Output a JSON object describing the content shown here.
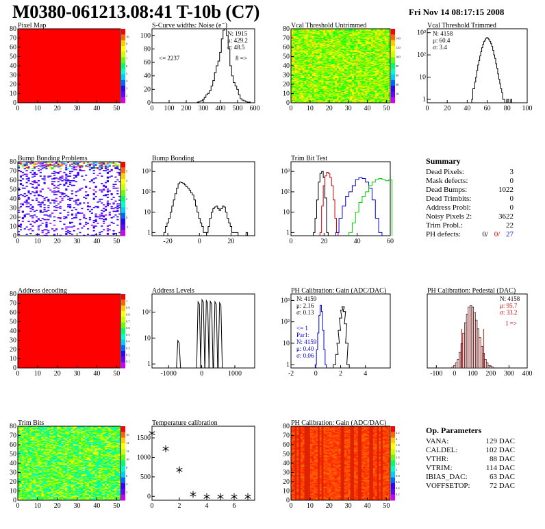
{
  "header": {
    "title": "M0380-061213.08:41 T-10b (C7)",
    "date": "Fri Nov 14 08:17:15 2008"
  },
  "colors": {
    "red_hist": "#cc0000",
    "green_hist": "#00cc00",
    "blue_hist": "#0000cc",
    "frame": "#000000"
  },
  "chart_data": [
    {
      "id": "pixel-map",
      "type": "heatmap",
      "title": "Pixel Map",
      "xlim": [
        0,
        52
      ],
      "ylim": [
        0,
        80
      ],
      "xticks": [
        "0",
        "10",
        "20",
        "30",
        "40",
        "50"
      ],
      "yticks": [
        "0",
        "10",
        "20",
        "30",
        "40",
        "50",
        "60",
        "70",
        "80"
      ],
      "zticks": [
        "2",
        "3",
        "4",
        "5",
        "6",
        "7",
        "8",
        "9",
        "10"
      ],
      "fill": "uniform red (all pixels at maximum)"
    },
    {
      "id": "scurve-noise",
      "type": "line",
      "title": "S-Curve widths: Noise (e⁻)",
      "xlim": [
        0,
        600
      ],
      "ylim": [
        0,
        110
      ],
      "xticks": [
        "0",
        "100",
        "200",
        "300",
        "400",
        "500",
        "600"
      ],
      "yticks": [
        "0",
        "20",
        "40",
        "60",
        "80",
        "100"
      ],
      "stats": [
        "N: 1915",
        "μ: 429.2",
        "σ: 48.5"
      ],
      "annotations": [
        "<= 2237",
        "8 =>"
      ],
      "x": [
        270,
        280,
        290,
        300,
        310,
        320,
        330,
        340,
        350,
        360,
        370,
        380,
        390,
        400,
        410,
        420,
        430,
        440,
        450,
        460,
        470,
        480,
        490,
        500,
        510,
        520,
        530,
        540,
        550,
        560,
        570
      ],
      "values": [
        1,
        2,
        3,
        5,
        8,
        12,
        14,
        18,
        25,
        33,
        45,
        55,
        62,
        75,
        95,
        108,
        112,
        100,
        80,
        55,
        40,
        30,
        25,
        20,
        12,
        6,
        4,
        3,
        2,
        1,
        1
      ]
    },
    {
      "id": "vcal-untrimmed",
      "type": "heatmap",
      "title": "Vcal Threshold Untrimmed",
      "xlim": [
        0,
        52
      ],
      "ylim": [
        0,
        80
      ],
      "xticks": [
        "0",
        "10",
        "20",
        "30",
        "40",
        "50"
      ],
      "yticks": [
        "0",
        "10",
        "20",
        "30",
        "40",
        "50",
        "60",
        "70",
        "80"
      ],
      "zticks": [
        "20",
        "40",
        "60",
        "80",
        "100",
        "120",
        "140"
      ],
      "fill": "mostly green/yellow noise"
    },
    {
      "id": "vcal-trimmed",
      "type": "line",
      "title": "Vcal Threshold Trimmed",
      "xlim": [
        0,
        100
      ],
      "ylim": [
        0.7,
        1500
      ],
      "yscale": "log",
      "xticks": [
        "0",
        "20",
        "40",
        "60",
        "80",
        "100"
      ],
      "yticks": [
        "1",
        "10",
        "10²",
        "10³"
      ],
      "stats": [
        "N: 4158",
        "μ: 60.4",
        "σ: 3.4"
      ],
      "x": [
        45,
        46,
        47,
        48,
        49,
        50,
        51,
        52,
        53,
        54,
        55,
        56,
        57,
        58,
        59,
        60,
        61,
        62,
        63,
        64,
        65,
        66,
        67,
        68,
        69,
        70,
        71,
        72,
        73,
        74,
        75,
        76,
        77,
        78,
        79,
        80,
        81,
        82,
        83,
        84
      ],
      "values": [
        1,
        3,
        3,
        6,
        10,
        20,
        35,
        55,
        90,
        140,
        210,
        300,
        400,
        470,
        560,
        600,
        560,
        480,
        400,
        320,
        240,
        160,
        100,
        70,
        40,
        25,
        14,
        8,
        5,
        3,
        2,
        1,
        1,
        0,
        0,
        1,
        1,
        0,
        0,
        1
      ]
    },
    {
      "id": "bump-problems",
      "type": "heatmap",
      "title": "Bump Bonding Problems",
      "xlim": [
        0,
        52
      ],
      "ylim": [
        0,
        80
      ],
      "xticks": [
        "0",
        "10",
        "20",
        "30",
        "40",
        "50"
      ],
      "yticks": [
        "0",
        "10",
        "20",
        "30",
        "40",
        "50",
        "60",
        "70",
        "80"
      ],
      "zticks": [
        "-1",
        "0",
        "1",
        "2",
        "3",
        "4",
        "5"
      ],
      "fill": "sparse blue points on white"
    },
    {
      "id": "bump-bonding",
      "type": "line",
      "title": "Bump Bonding",
      "xlim": [
        -30,
        35
      ],
      "ylim": [
        0.7,
        3000
      ],
      "yscale": "log",
      "xticks": [
        "-20",
        "0",
        "20"
      ],
      "yticks": [
        "1",
        "10",
        "10²",
        "10³"
      ],
      "series": [
        {
          "x": [
            -22,
            -21,
            -20,
            -19,
            -18,
            -17,
            -16,
            -15,
            -14,
            -13,
            -12,
            -11,
            -10,
            -9,
            -8,
            -7,
            -6,
            -5,
            -4,
            -3,
            -2,
            -1,
            0,
            1,
            2,
            3,
            4
          ],
          "values": [
            1,
            2,
            3,
            5,
            10,
            20,
            40,
            80,
            150,
            250,
            300,
            280,
            260,
            220,
            180,
            150,
            120,
            90,
            70,
            40,
            20,
            10,
            5,
            3,
            2,
            1,
            1
          ]
        },
        {
          "x": [
            5,
            6,
            7,
            8,
            9,
            10,
            11,
            12,
            13,
            14,
            15,
            16,
            17,
            18,
            19,
            20,
            21,
            22,
            23,
            24
          ],
          "values": [
            1,
            2,
            5,
            10,
            15,
            18,
            20,
            15,
            12,
            15,
            20,
            18,
            10,
            5,
            3,
            2,
            1,
            1,
            1,
            1
          ]
        },
        {
          "x": [
            30
          ],
          "values": [
            1
          ]
        }
      ]
    },
    {
      "id": "trim-bit-test",
      "type": "line",
      "title": "Trim Bit Test",
      "xlim": [
        0,
        60
      ],
      "ylim": [
        0.7,
        3000
      ],
      "yscale": "log",
      "xticks": [
        "0",
        "20",
        "40",
        "60"
      ],
      "yticks": [
        "1",
        "10",
        "10²",
        "10³"
      ],
      "series": [
        {
          "color": "black",
          "x": [
            14,
            15,
            16,
            17,
            18,
            19,
            20,
            21,
            22
          ],
          "values": [
            1,
            5,
            40,
            300,
            800,
            1000,
            500,
            50,
            1
          ]
        },
        {
          "color": "red",
          "x": [
            18,
            19,
            20,
            21,
            22,
            23,
            24,
            25,
            26,
            27,
            28
          ],
          "values": [
            1,
            20,
            200,
            600,
            900,
            800,
            500,
            200,
            40,
            5,
            1
          ]
        },
        {
          "color": "blue",
          "x": [
            28,
            30,
            32,
            34,
            36,
            38,
            40,
            42,
            44,
            46,
            48,
            50,
            52,
            54
          ],
          "values": [
            1,
            5,
            20,
            60,
            100,
            200,
            400,
            500,
            450,
            300,
            150,
            40,
            5,
            1
          ]
        },
        {
          "color": "green",
          "x": [
            36,
            38,
            40,
            42,
            44,
            46,
            48,
            50,
            52,
            54,
            56,
            58,
            60
          ],
          "values": [
            1,
            3,
            10,
            30,
            60,
            100,
            200,
            300,
            400,
            450,
            400,
            350,
            380
          ]
        }
      ]
    },
    {
      "id": "address-decoding",
      "type": "heatmap",
      "title": "Address decoding",
      "xlim": [
        0,
        52
      ],
      "ylim": [
        0,
        80
      ],
      "xticks": [
        "0",
        "10",
        "20",
        "30",
        "40",
        "50"
      ],
      "yticks": [
        "0",
        "10",
        "20",
        "30",
        "40",
        "50",
        "60",
        "70",
        "80"
      ],
      "zticks": [
        "0.1",
        "0.2",
        "0.3",
        "0.4",
        "0.5",
        "0.6",
        "0.7",
        "0.8",
        "0.9",
        "1"
      ],
      "fill": "uniform red"
    },
    {
      "id": "address-levels",
      "type": "line",
      "title": "Address Levels",
      "xlim": [
        -1500,
        1600
      ],
      "ylim": [
        0.7,
        500
      ],
      "yscale": "log",
      "xticks": [
        "-1000",
        "0",
        "1000"
      ],
      "yticks": [
        "1",
        "10",
        "10²"
      ],
      "peaks_x": [
        -700,
        -90,
        30,
        160,
        280,
        420,
        560
      ],
      "peaks_values": [
        8,
        250,
        300,
        280,
        260,
        250,
        230
      ]
    },
    {
      "id": "ph-gain",
      "type": "line",
      "title": "PH Calibration: Gain (ADC/DAC)",
      "xlim": [
        -2,
        6
      ],
      "ylim": [
        0.7,
        2000
      ],
      "yscale": "log",
      "xticks": [
        "-2",
        "0",
        "2",
        "4"
      ],
      "yticks": [
        "1",
        "10",
        "10²",
        "10³"
      ],
      "stats": [
        "N: 4159",
        "μ: 2.16",
        "σ: 0.13"
      ],
      "stats_blue": [
        "<= 1",
        "Par1:",
        "N: 4159",
        "μ: 0.40",
        "σ: 0.06"
      ],
      "series": [
        {
          "color": "black",
          "x": [
            1.5,
            1.7,
            1.8,
            1.9,
            2.0,
            2.1,
            2.2,
            2.3,
            2.4,
            2.5,
            2.6
          ],
          "values": [
            1,
            3,
            10,
            40,
            150,
            350,
            500,
            300,
            80,
            10,
            1
          ]
        },
        {
          "color": "blue",
          "x": [
            0.0,
            0.1,
            0.2,
            0.3,
            0.4,
            0.5,
            0.6,
            0.7,
            0.8
          ],
          "values": [
            1,
            5,
            30,
            200,
            600,
            300,
            40,
            5,
            1
          ]
        }
      ]
    },
    {
      "id": "ph-pedestal",
      "type": "bar",
      "title": "PH Calibration: Pedestal (DAC)",
      "xlim": [
        -150,
        400
      ],
      "ylim": [
        0,
        85
      ],
      "xticks": [
        "-100",
        "0",
        "100",
        "200",
        "300",
        "400"
      ],
      "stats": [
        "N: 4158",
        "μ: 95.7",
        "σ: 33.2"
      ],
      "annotations": [
        "1 =>"
      ],
      "x": [
        -10,
        0,
        10,
        20,
        30,
        40,
        50,
        60,
        70,
        80,
        90,
        100,
        110,
        120,
        130,
        140,
        150,
        160,
        170,
        180,
        190,
        200,
        210
      ],
      "values": [
        1,
        3,
        6,
        10,
        18,
        28,
        40,
        52,
        62,
        70,
        72,
        70,
        64,
        55,
        45,
        35,
        25,
        17,
        10,
        6,
        3,
        2,
        1
      ]
    },
    {
      "id": "trim-bits",
      "type": "heatmap",
      "title": "Trim Bits",
      "xlim": [
        0,
        52
      ],
      "ylim": [
        0,
        80
      ],
      "xticks": [
        "0",
        "10",
        "20",
        "30",
        "40",
        "50"
      ],
      "yticks": [
        "0",
        "10",
        "20",
        "30",
        "40",
        "50",
        "60",
        "70",
        "80"
      ],
      "zticks": [
        "2",
        "4",
        "6",
        "8",
        "10",
        "12",
        "14",
        "16"
      ],
      "fill": "green/yellow noise"
    },
    {
      "id": "temperature-calibration",
      "type": "scatter",
      "title": "Temperature calibration",
      "xlim": [
        0,
        7.5
      ],
      "ylim": [
        -100,
        1800
      ],
      "xticks": [
        "0",
        "2",
        "4",
        "6"
      ],
      "yticks": [
        "0",
        "500",
        "1000",
        "1500"
      ],
      "x": [
        0,
        1,
        2,
        3,
        4,
        5,
        6,
        7
      ],
      "values": [
        1620,
        1220,
        680,
        50,
        -10,
        -10,
        -10,
        -10
      ]
    },
    {
      "id": "ph-gain-map",
      "type": "heatmap",
      "title": "PH Calibration: Gain (ADC/DAC)",
      "xlim": [
        0,
        52
      ],
      "ylim": [
        0,
        80
      ],
      "xticks": [
        "0",
        "10",
        "20",
        "30",
        "40",
        "50"
      ],
      "yticks": [
        "0",
        "10",
        "20",
        "30",
        "40",
        "50",
        "60",
        "70",
        "80"
      ],
      "zticks": [
        "0.2",
        "0.4",
        "0.6",
        "0.8",
        "1",
        "1.2",
        "1.4",
        "1.6",
        "1.8",
        "2",
        "2.2"
      ],
      "fill": "orange/red columnar stripes"
    }
  ],
  "summary": {
    "title": "Summary",
    "rows": [
      {
        "label": "Dead Pixels:",
        "value": "3"
      },
      {
        "label": "Mask defects:",
        "value": "0"
      },
      {
        "label": "Dead Bumps:",
        "value": "1022"
      },
      {
        "label": "Dead Trimbits:",
        "value": "0"
      },
      {
        "label": "Address Probl:",
        "value": "0"
      },
      {
        "label": "Noisy Pixels 2:",
        "value": "3622"
      },
      {
        "label": "Trim Probl.:",
        "value": "22"
      }
    ],
    "ph_label": "PH defects:",
    "ph_values": [
      "0/",
      "0/",
      "27"
    ]
  },
  "op_params": {
    "title": "Op. Parameters",
    "rows": [
      {
        "label": "VANA:",
        "value": "129 DAC"
      },
      {
        "label": "CALDEL:",
        "value": "102 DAC"
      },
      {
        "label": "VTHR:",
        "value": "88 DAC"
      },
      {
        "label": "VTRIM:",
        "value": "114 DAC"
      },
      {
        "label": "IBIAS_DAC:",
        "value": "63 DAC"
      },
      {
        "label": "VOFFSETOP:",
        "value": "72 DAC"
      }
    ]
  }
}
